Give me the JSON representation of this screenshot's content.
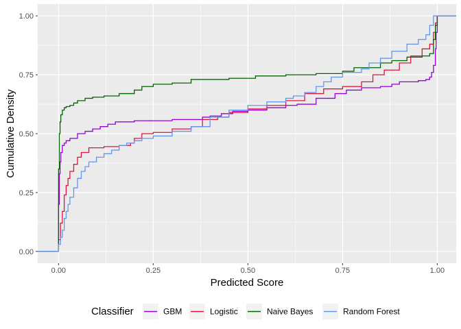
{
  "chart_data": {
    "type": "line",
    "subtype": "ecdf-step",
    "xlabel": "Predicted Score",
    "ylabel": "Cumulative Density",
    "xlim": [
      -0.055,
      1.05
    ],
    "ylim": [
      -0.05,
      1.05
    ],
    "x_ticks": [
      0.0,
      0.25,
      0.5,
      0.75,
      1.0
    ],
    "x_tick_labels": [
      "0.00",
      "0.25",
      "0.50",
      "0.75",
      "1.00"
    ],
    "y_ticks": [
      0.0,
      0.25,
      0.5,
      0.75,
      1.0
    ],
    "y_tick_labels": [
      "0.00",
      "0.25",
      "0.50",
      "0.75",
      "1.00"
    ],
    "grid": true,
    "legend": {
      "title": "Classifier",
      "position": "bottom"
    },
    "series": [
      {
        "name": "GBM",
        "color": "#9400D3",
        "points": [
          [
            -0.06,
            0.0
          ],
          [
            0.0,
            0.0
          ],
          [
            0.0,
            0.2
          ],
          [
            0.002,
            0.33
          ],
          [
            0.004,
            0.38
          ],
          [
            0.006,
            0.42
          ],
          [
            0.01,
            0.45
          ],
          [
            0.015,
            0.46
          ],
          [
            0.02,
            0.47
          ],
          [
            0.03,
            0.48
          ],
          [
            0.05,
            0.5
          ],
          [
            0.07,
            0.51
          ],
          [
            0.09,
            0.52
          ],
          [
            0.11,
            0.53
          ],
          [
            0.13,
            0.54
          ],
          [
            0.15,
            0.55
          ],
          [
            0.2,
            0.555
          ],
          [
            0.3,
            0.56
          ],
          [
            0.38,
            0.57
          ],
          [
            0.4,
            0.575
          ],
          [
            0.43,
            0.585
          ],
          [
            0.46,
            0.595
          ],
          [
            0.5,
            0.6
          ],
          [
            0.55,
            0.61
          ],
          [
            0.6,
            0.62
          ],
          [
            0.63,
            0.625
          ],
          [
            0.68,
            0.65
          ],
          [
            0.73,
            0.67
          ],
          [
            0.76,
            0.685
          ],
          [
            0.8,
            0.695
          ],
          [
            0.85,
            0.7
          ],
          [
            0.87,
            0.7
          ],
          [
            0.88,
            0.71
          ],
          [
            0.9,
            0.72
          ],
          [
            0.95,
            0.725
          ],
          [
            0.97,
            0.73
          ],
          [
            0.98,
            0.74
          ],
          [
            0.985,
            0.76
          ],
          [
            0.99,
            0.79
          ],
          [
            0.995,
            0.86
          ],
          [
            0.997,
            0.93
          ],
          [
            1.0,
            1.0
          ],
          [
            1.06,
            1.0
          ]
        ]
      },
      {
        "name": "Logistic",
        "color": "#DC143C",
        "points": [
          [
            -0.06,
            0.0
          ],
          [
            0.0,
            0.0
          ],
          [
            0.0,
            0.05
          ],
          [
            0.005,
            0.12
          ],
          [
            0.01,
            0.17
          ],
          [
            0.015,
            0.24
          ],
          [
            0.02,
            0.28
          ],
          [
            0.025,
            0.31
          ],
          [
            0.03,
            0.34
          ],
          [
            0.04,
            0.37
          ],
          [
            0.05,
            0.4
          ],
          [
            0.06,
            0.42
          ],
          [
            0.08,
            0.44
          ],
          [
            0.12,
            0.445
          ],
          [
            0.16,
            0.45
          ],
          [
            0.19,
            0.46
          ],
          [
            0.2,
            0.48
          ],
          [
            0.22,
            0.5
          ],
          [
            0.25,
            0.505
          ],
          [
            0.3,
            0.52
          ],
          [
            0.35,
            0.53
          ],
          [
            0.38,
            0.56
          ],
          [
            0.42,
            0.57
          ],
          [
            0.45,
            0.59
          ],
          [
            0.5,
            0.605
          ],
          [
            0.55,
            0.62
          ],
          [
            0.6,
            0.64
          ],
          [
            0.65,
            0.67
          ],
          [
            0.7,
            0.69
          ],
          [
            0.75,
            0.7
          ],
          [
            0.8,
            0.72
          ],
          [
            0.83,
            0.75
          ],
          [
            0.86,
            0.77
          ],
          [
            0.9,
            0.8
          ],
          [
            0.93,
            0.83
          ],
          [
            0.96,
            0.86
          ],
          [
            0.98,
            0.88
          ],
          [
            0.99,
            0.93
          ],
          [
            0.995,
            0.97
          ],
          [
            1.0,
            1.0
          ],
          [
            1.06,
            1.0
          ]
        ]
      },
      {
        "name": "Naive Bayes",
        "color": "#006400",
        "points": [
          [
            -0.06,
            0.0
          ],
          [
            0.0,
            0.0
          ],
          [
            0.0,
            0.35
          ],
          [
            0.002,
            0.5
          ],
          [
            0.004,
            0.55
          ],
          [
            0.006,
            0.58
          ],
          [
            0.01,
            0.6
          ],
          [
            0.015,
            0.61
          ],
          [
            0.02,
            0.615
          ],
          [
            0.03,
            0.62
          ],
          [
            0.04,
            0.63
          ],
          [
            0.05,
            0.64
          ],
          [
            0.07,
            0.65
          ],
          [
            0.09,
            0.655
          ],
          [
            0.12,
            0.66
          ],
          [
            0.16,
            0.67
          ],
          [
            0.2,
            0.685
          ],
          [
            0.22,
            0.7
          ],
          [
            0.25,
            0.71
          ],
          [
            0.3,
            0.715
          ],
          [
            0.35,
            0.73
          ],
          [
            0.45,
            0.735
          ],
          [
            0.52,
            0.745
          ],
          [
            0.6,
            0.75
          ],
          [
            0.68,
            0.755
          ],
          [
            0.75,
            0.765
          ],
          [
            0.78,
            0.78
          ],
          [
            0.85,
            0.8
          ],
          [
            0.88,
            0.81
          ],
          [
            0.92,
            0.825
          ],
          [
            0.96,
            0.83
          ],
          [
            0.98,
            0.84
          ],
          [
            0.99,
            0.9
          ],
          [
            0.995,
            0.96
          ],
          [
            1.0,
            1.0
          ],
          [
            1.06,
            1.0
          ]
        ]
      },
      {
        "name": "Random Forest",
        "color": "#6495ED",
        "points": [
          [
            -0.06,
            0.0
          ],
          [
            0.0,
            0.0
          ],
          [
            0.0,
            0.03
          ],
          [
            0.005,
            0.06
          ],
          [
            0.01,
            0.09
          ],
          [
            0.015,
            0.14
          ],
          [
            0.02,
            0.17
          ],
          [
            0.025,
            0.2
          ],
          [
            0.03,
            0.23
          ],
          [
            0.04,
            0.27
          ],
          [
            0.05,
            0.31
          ],
          [
            0.06,
            0.34
          ],
          [
            0.07,
            0.36
          ],
          [
            0.08,
            0.38
          ],
          [
            0.1,
            0.4
          ],
          [
            0.12,
            0.415
          ],
          [
            0.14,
            0.43
          ],
          [
            0.16,
            0.45
          ],
          [
            0.18,
            0.46
          ],
          [
            0.2,
            0.47
          ],
          [
            0.22,
            0.48
          ],
          [
            0.25,
            0.49
          ],
          [
            0.3,
            0.51
          ],
          [
            0.35,
            0.53
          ],
          [
            0.4,
            0.57
          ],
          [
            0.45,
            0.6
          ],
          [
            0.5,
            0.62
          ],
          [
            0.55,
            0.635
          ],
          [
            0.6,
            0.65
          ],
          [
            0.62,
            0.66
          ],
          [
            0.65,
            0.675
          ],
          [
            0.68,
            0.7
          ],
          [
            0.7,
            0.72
          ],
          [
            0.72,
            0.74
          ],
          [
            0.75,
            0.76
          ],
          [
            0.8,
            0.775
          ],
          [
            0.82,
            0.8
          ],
          [
            0.85,
            0.82
          ],
          [
            0.88,
            0.85
          ],
          [
            0.92,
            0.88
          ],
          [
            0.95,
            0.9
          ],
          [
            0.97,
            0.92
          ],
          [
            0.98,
            0.96
          ],
          [
            0.99,
            1.0
          ],
          [
            1.06,
            1.0
          ]
        ]
      }
    ]
  }
}
